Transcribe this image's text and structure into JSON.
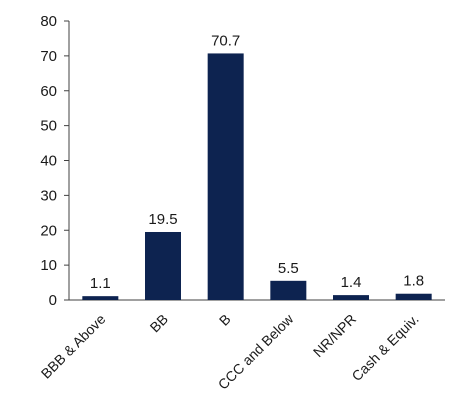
{
  "chart_data": {
    "type": "bar",
    "categories": [
      "BBB & Above",
      "BB",
      "B",
      "CCC and Below",
      "NR/NPR",
      "Cash & Equiv."
    ],
    "values": [
      1.1,
      19.5,
      70.7,
      5.5,
      1.4,
      1.8
    ],
    "data_labels": [
      "1.1",
      "19.5",
      "70.7",
      "5.5",
      "1.4",
      "1.8"
    ],
    "title": "",
    "xlabel": "",
    "ylabel": "",
    "ylim": [
      0,
      80
    ],
    "yticks": [
      0,
      10,
      20,
      30,
      40,
      50,
      60,
      70,
      80
    ],
    "grid": false,
    "legend": "none",
    "bar_color": "#0d2350"
  }
}
